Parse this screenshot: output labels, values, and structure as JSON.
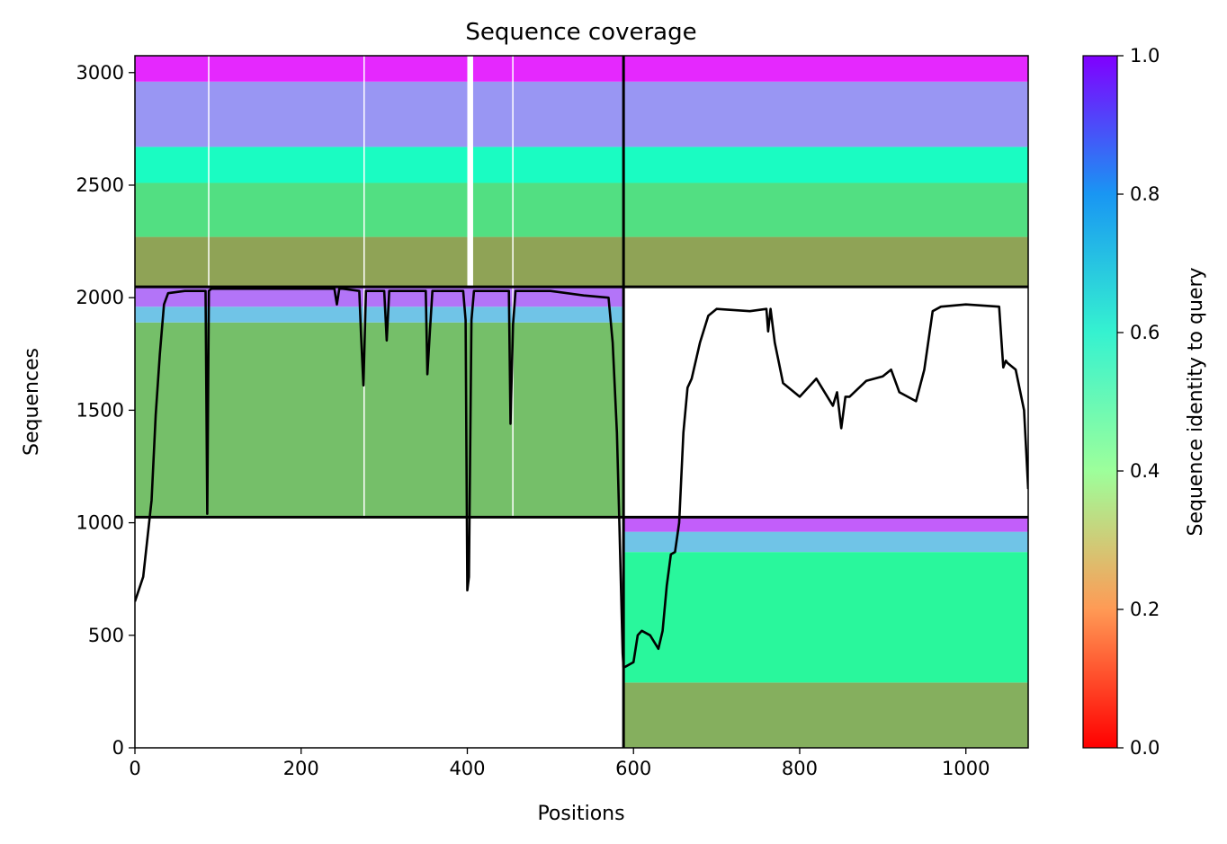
{
  "chart_data": {
    "type": "heatmap",
    "title": "Sequence coverage",
    "xlabel": "Positions",
    "ylabel": "Sequences",
    "xlim": [
      0,
      1075
    ],
    "ylim": [
      0,
      3075
    ],
    "xticks": [
      0,
      200,
      400,
      600,
      800,
      1000
    ],
    "yticks": [
      0,
      500,
      1000,
      1500,
      2000,
      2500,
      3000
    ],
    "colorbar": {
      "label": "Sequence identity to query",
      "range": [
        0.0,
        1.0
      ],
      "ticks": [
        "0.0",
        "0.2",
        "0.4",
        "0.6",
        "0.8",
        "1.0"
      ],
      "colormap": "rainbow"
    },
    "chain_boundaries": {
      "x": [
        588
      ],
      "y": [
        1025,
        2048
      ]
    },
    "blocks": [
      {
        "x": [
          0,
          588
        ],
        "y": [
          2048,
          3075
        ],
        "bands": [
          [
            2048,
            2270,
            0.22
          ],
          [
            2270,
            2510,
            0.34
          ],
          [
            2510,
            2670,
            0.55
          ],
          [
            2670,
            2960,
            0.8
          ],
          [
            2960,
            3075,
            0.95
          ]
        ],
        "gap_cols": [
          [
            400,
            407
          ],
          [
            88,
            89
          ],
          [
            275,
            276
          ],
          [
            454,
            455
          ]
        ]
      },
      {
        "x": [
          0,
          588
        ],
        "y": [
          1025,
          2048
        ],
        "bands": [
          [
            1025,
            1890,
            0.27
          ],
          [
            1890,
            1960,
            0.72
          ],
          [
            1960,
            2048,
            0.85
          ]
        ],
        "gap_cols": [
          [
            454,
            455
          ],
          [
            275,
            276
          ]
        ]
      },
      {
        "x": [
          588,
          1075
        ],
        "y": [
          2048,
          3075
        ],
        "bands": [
          [
            2048,
            2270,
            0.22
          ],
          [
            2270,
            2510,
            0.34
          ],
          [
            2510,
            2670,
            0.55
          ],
          [
            2670,
            2960,
            0.8
          ],
          [
            2960,
            3075,
            0.95
          ]
        ],
        "gap_cols": []
      },
      {
        "x": [
          588,
          1075
        ],
        "y": [
          0,
          1025
        ],
        "bands": [
          [
            0,
            290,
            0.24
          ],
          [
            290,
            870,
            0.42
          ],
          [
            870,
            960,
            0.72
          ],
          [
            960,
            1025,
            0.88
          ]
        ],
        "gap_cols": []
      }
    ],
    "series": [
      {
        "type": "line",
        "x": [
          0,
          10,
          20,
          25,
          30,
          35,
          40,
          60,
          85,
          87,
          89,
          92,
          100,
          150,
          200,
          240,
          243,
          246,
          250,
          270,
          272,
          275,
          278,
          282,
          300,
          303,
          306,
          310,
          330,
          350,
          352,
          355,
          358,
          362,
          380,
          395,
          398,
          400,
          402,
          405,
          408,
          412,
          450,
          452,
          455,
          458,
          462,
          500,
          540,
          570,
          575,
          580,
          583,
          585,
          587,
          588,
          590,
          600,
          605,
          610,
          620,
          630,
          635,
          640,
          645,
          650,
          655,
          660,
          665,
          670,
          680,
          690,
          700,
          740,
          760,
          762,
          765,
          770,
          780,
          800,
          820,
          840,
          845,
          850,
          855,
          860,
          880,
          900,
          910,
          920,
          940,
          950,
          960,
          970,
          1000,
          1040,
          1045,
          1048,
          1050,
          1060,
          1070,
          1075
        ],
        "y": [
          650,
          760,
          1100,
          1480,
          1750,
          1970,
          2020,
          2030,
          2030,
          1040,
          2030,
          2040,
          2040,
          2040,
          2040,
          2040,
          1970,
          2040,
          2040,
          2030,
          1840,
          1610,
          2030,
          2030,
          2030,
          1810,
          2030,
          2030,
          2030,
          2030,
          1660,
          1850,
          2030,
          2030,
          2030,
          2030,
          1900,
          700,
          760,
          1900,
          2030,
          2030,
          2030,
          1440,
          1880,
          2030,
          2030,
          2030,
          2010,
          2000,
          1800,
          1400,
          1000,
          700,
          420,
          360,
          360,
          380,
          500,
          520,
          500,
          440,
          520,
          720,
          860,
          870,
          1000,
          1400,
          1600,
          1640,
          1800,
          1920,
          1950,
          1940,
          1950,
          1850,
          1950,
          1800,
          1620,
          1560,
          1640,
          1520,
          1580,
          1420,
          1560,
          1560,
          1630,
          1650,
          1680,
          1580,
          1540,
          1680,
          1940,
          1960,
          1970,
          1960,
          1690,
          1720,
          1710,
          1680,
          1500,
          1150
        ]
      }
    ]
  }
}
